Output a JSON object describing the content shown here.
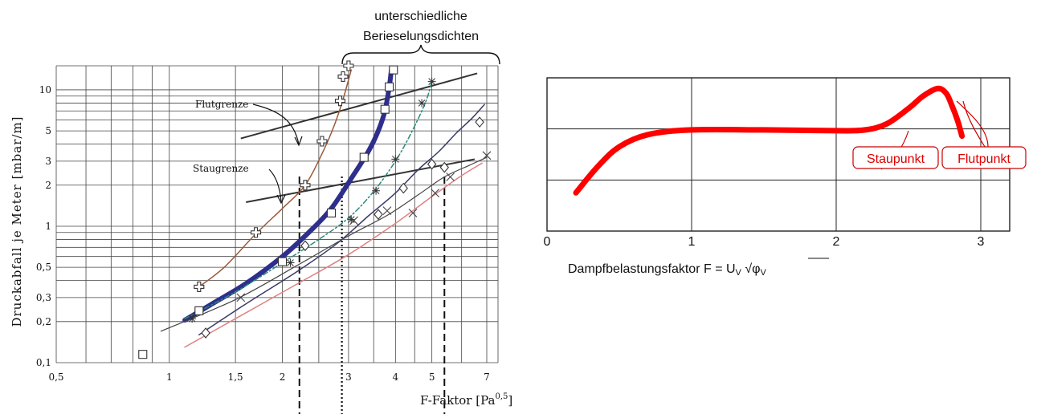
{
  "chart_data": [
    {
      "type": "line",
      "xscale": "log",
      "yscale": "log",
      "xlim": [
        0.5,
        7.5
      ],
      "ylim": [
        0.1,
        15
      ],
      "xlabel": "F-Faktor [Pa^0,5]",
      "xlabel_main": "F-Faktor [Pa",
      "xlabel_exp": "0,5",
      "xlabel_close": "]",
      "ylabel": "Druckabfall je Meter [mbar/m]",
      "xticks": [
        {
          "v": 0.5,
          "label": "0,5"
        },
        {
          "v": 1,
          "label": "1"
        },
        {
          "v": 1.5,
          "label": "1,5"
        },
        {
          "v": 2,
          "label": "2"
        },
        {
          "v": 3,
          "label": "3"
        },
        {
          "v": 4,
          "label": "4"
        },
        {
          "v": 5,
          "label": "5"
        },
        {
          "v": 7,
          "label": "7"
        }
      ],
      "yticks": [
        {
          "v": 0.1,
          "label": "0,1"
        },
        {
          "v": 0.2,
          "label": "0,2"
        },
        {
          "v": 0.3,
          "label": "0,3"
        },
        {
          "v": 0.5,
          "label": "0,5"
        },
        {
          "v": 1,
          "label": "1"
        },
        {
          "v": 2,
          "label": "2"
        },
        {
          "v": 3,
          "label": "3"
        },
        {
          "v": 5,
          "label": "5"
        },
        {
          "v": 10,
          "label": "10"
        }
      ],
      "series": [
        {
          "color": "#9a5a3a",
          "width": 1.5,
          "dash": "",
          "marker": "plus",
          "points": [
            [
              1.2,
              0.36
            ],
            [
              1.4,
              0.5
            ],
            [
              1.7,
              0.88
            ],
            [
              2.0,
              1.35
            ],
            [
              2.3,
              2.0
            ],
            [
              2.55,
              3.4
            ],
            [
              2.75,
              5.5
            ],
            [
              2.9,
              8.5
            ],
            [
              3.05,
              14
            ]
          ],
          "markers": [
            [
              1.2,
              0.36
            ],
            [
              1.7,
              0.9
            ],
            [
              2.3,
              2.0
            ],
            [
              2.55,
              4.2
            ],
            [
              2.85,
              8.3
            ],
            [
              2.9,
              12.5
            ],
            [
              3.0,
              15
            ]
          ]
        },
        {
          "color": "#2e2e8c",
          "width": 6,
          "dash": "",
          "marker": "square",
          "points": [
            [
              1.1,
              0.205
            ],
            [
              1.3,
              0.27
            ],
            [
              1.6,
              0.38
            ],
            [
              2.0,
              0.6
            ],
            [
              2.35,
              0.9
            ],
            [
              2.7,
              1.35
            ],
            [
              3.1,
              2.4
            ],
            [
              3.4,
              3.6
            ],
            [
              3.6,
              5.0
            ],
            [
              3.75,
              7.0
            ],
            [
              3.85,
              10.5
            ],
            [
              3.9,
              14
            ]
          ],
          "markers": [
            [
              0.85,
              0.115
            ],
            [
              1.2,
              0.24
            ],
            [
              2.0,
              0.55
            ],
            [
              2.7,
              1.25
            ],
            [
              3.3,
              3.2
            ],
            [
              3.75,
              7.2
            ],
            [
              3.85,
              10.5
            ],
            [
              3.95,
              14
            ]
          ]
        },
        {
          "color": "#2a8a7a",
          "width": 1.5,
          "dash": "6,3,2,3",
          "marker": "star",
          "points": [
            [
              1.1,
              0.21
            ],
            [
              1.5,
              0.33
            ],
            [
              2.0,
              0.54
            ],
            [
              2.5,
              0.8
            ],
            [
              3.0,
              1.15
            ],
            [
              3.5,
              1.8
            ],
            [
              4.0,
              3.0
            ],
            [
              4.4,
              4.8
            ],
            [
              4.8,
              8.0
            ],
            [
              5.0,
              11.5
            ]
          ],
          "markers": [
            [
              1.15,
              0.21
            ],
            [
              2.1,
              0.54
            ],
            [
              3.05,
              1.12
            ],
            [
              3.55,
              1.82
            ],
            [
              4.0,
              3.1
            ],
            [
              4.7,
              8.0
            ],
            [
              5.0,
              11.5
            ]
          ]
        },
        {
          "color": "#3a3a6a",
          "width": 1.5,
          "dash": "",
          "marker": "diamond",
          "points": [
            [
              1.2,
              0.16
            ],
            [
              1.6,
              0.27
            ],
            [
              2.2,
              0.47
            ],
            [
              2.8,
              0.75
            ],
            [
              3.4,
              1.2
            ],
            [
              4.0,
              1.75
            ],
            [
              4.6,
              2.6
            ],
            [
              5.2,
              3.5
            ],
            [
              5.8,
              4.8
            ],
            [
              6.4,
              6.2
            ],
            [
              6.9,
              7.8
            ]
          ],
          "markers": [
            [
              1.25,
              0.165
            ],
            [
              2.3,
              0.72
            ],
            [
              3.6,
              1.22
            ],
            [
              4.2,
              1.9
            ],
            [
              5.0,
              2.85
            ],
            [
              5.4,
              2.7
            ],
            [
              6.7,
              5.8
            ]
          ]
        },
        {
          "color": "#444444",
          "width": 1.2,
          "dash": "",
          "marker": "x",
          "points": [
            [
              0.95,
              0.17
            ],
            [
              1.5,
              0.29
            ],
            [
              2.2,
              0.52
            ],
            [
              3.0,
              0.85
            ],
            [
              3.8,
              1.2
            ],
            [
              4.6,
              1.7
            ],
            [
              5.4,
              2.3
            ],
            [
              6.3,
              2.8
            ],
            [
              7.0,
              3.2
            ]
          ],
          "markers": [
            [
              1.55,
              0.3
            ],
            [
              3.1,
              1.1
            ],
            [
              3.8,
              1.3
            ],
            [
              4.45,
              1.25
            ],
            [
              5.1,
              1.75
            ],
            [
              5.6,
              2.3
            ],
            [
              7.0,
              3.3
            ]
          ]
        },
        {
          "color": "#e08080",
          "width": 1.5,
          "dash": "",
          "marker": "none",
          "points": [
            [
              1.1,
              0.13
            ],
            [
              1.5,
              0.21
            ],
            [
              2.2,
              0.38
            ],
            [
              3.0,
              0.62
            ],
            [
              4.0,
              1.05
            ],
            [
              5.0,
              1.65
            ],
            [
              6.0,
              2.35
            ],
            [
              6.8,
              2.9
            ]
          ],
          "markers": []
        }
      ],
      "limit_lines": [
        {
          "label": "Flutgrenze",
          "p1": [
            1.55,
            4.4
          ],
          "p2": [
            6.6,
            13.2
          ]
        },
        {
          "label": "Staugrenze",
          "p1": [
            1.6,
            1.5
          ],
          "p2": [
            6.5,
            3.1
          ]
        }
      ],
      "vlines": [
        {
          "x": 2.22,
          "dash": "9,5"
        },
        {
          "x": 2.88,
          "dash": "2,3"
        },
        {
          "x": 5.4,
          "dash": "9,5"
        }
      ],
      "brace_label_line1": "unterschiedliche",
      "brace_label_line2": "Berieselungsdichten"
    },
    {
      "type": "line",
      "xlim": [
        0,
        3.2
      ],
      "xticks": [
        0,
        1,
        2,
        3
      ],
      "x": [
        0.2,
        0.35,
        0.5,
        0.7,
        1.0,
        1.5,
        2.0,
        2.2,
        2.35,
        2.5,
        2.6,
        2.7,
        2.76,
        2.8,
        2.84,
        2.87
      ],
      "y": [
        0.25,
        0.42,
        0.55,
        0.63,
        0.66,
        0.66,
        0.655,
        0.66,
        0.7,
        0.8,
        0.88,
        0.93,
        0.9,
        0.82,
        0.72,
        0.62
      ],
      "line_color": "#ff0000",
      "xlabel_prefix": "Dampfbelastungsfaktor F = U",
      "xlabel_sub1": "V",
      "xlabel_root": "√φ",
      "xlabel_sub2": "V",
      "annotations": [
        {
          "label": "Staupunkt",
          "x": 2.35
        },
        {
          "label": "Flutpunkt",
          "x": 2.7
        }
      ]
    }
  ]
}
